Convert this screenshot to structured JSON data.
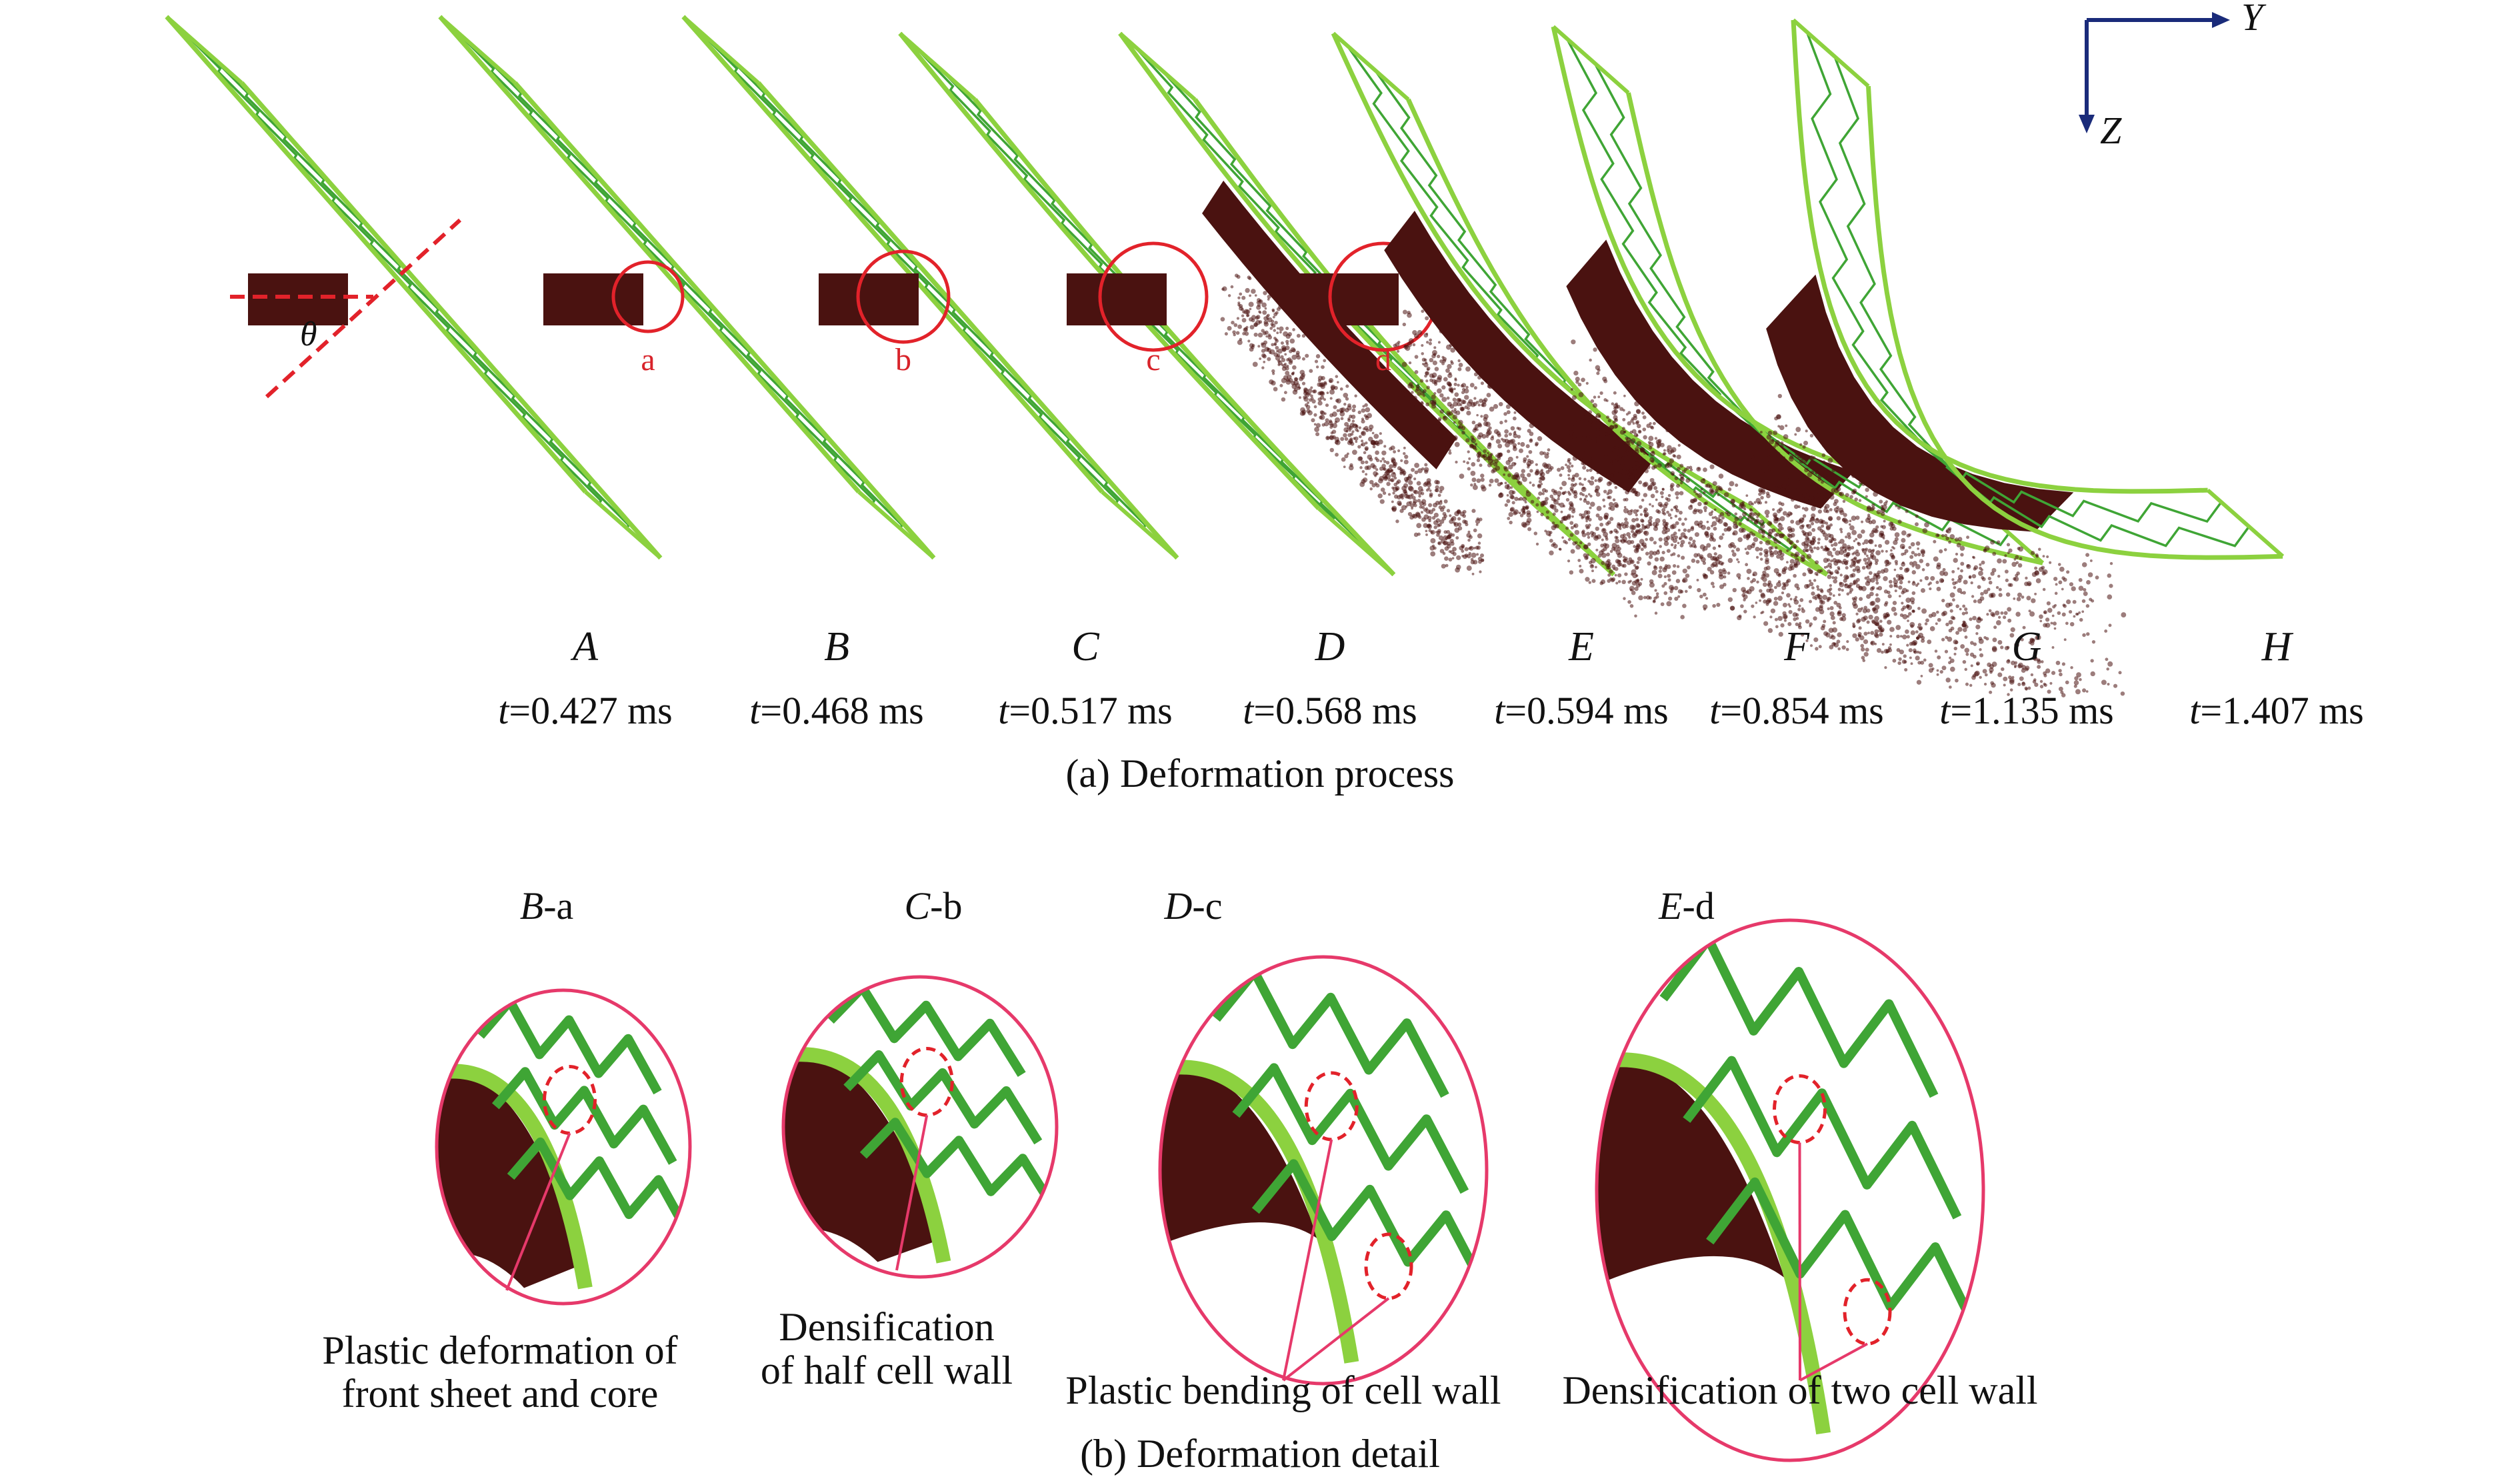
{
  "colors": {
    "panel": "#8cd13f",
    "core": "#3fa535",
    "projectile": "#4a1210",
    "marker": "#e2222a",
    "detail_circle": "#e6396a",
    "axis": "#1a2b7a"
  },
  "axes": {
    "y_label": "Y",
    "z_label": "Z"
  },
  "angle_label": "θ",
  "frames": [
    {
      "label": "A",
      "time": "=0.427 ms",
      "time_prefix": "t",
      "marker": ""
    },
    {
      "label": "B",
      "time": "=0.468 ms",
      "time_prefix": "t",
      "marker": "a"
    },
    {
      "label": "C",
      "time": "=0.517 ms",
      "time_prefix": "t",
      "marker": "b"
    },
    {
      "label": "D",
      "time": "=0.568 ms",
      "time_prefix": "t",
      "marker": "c"
    },
    {
      "label": "E",
      "time": "=0.594 ms",
      "time_prefix": "t",
      "marker": "d"
    },
    {
      "label": "F",
      "time": "=0.854 ms",
      "time_prefix": "t",
      "marker": ""
    },
    {
      "label": "G",
      "time": "=1.135 ms",
      "time_prefix": "t",
      "marker": ""
    },
    {
      "label": "H",
      "time": "=1.407 ms",
      "time_prefix": "t",
      "marker": ""
    }
  ],
  "caption_a": "(a) Deformation process",
  "details": [
    {
      "frame": "B",
      "suffix": "-a",
      "annotation_lines": [
        "Plastic deformation of",
        "front sheet and core"
      ]
    },
    {
      "frame": "C",
      "suffix": "-b",
      "annotation_lines": [
        "Densification",
        "of half cell wall"
      ]
    },
    {
      "frame": "D",
      "suffix": "-c",
      "annotation_lines": [
        "Plastic bending of cell wall"
      ]
    },
    {
      "frame": "E",
      "suffix": "-d",
      "annotation_lines": [
        "Densification of two cell wall"
      ]
    }
  ],
  "caption_b": "(b) Deformation detail"
}
